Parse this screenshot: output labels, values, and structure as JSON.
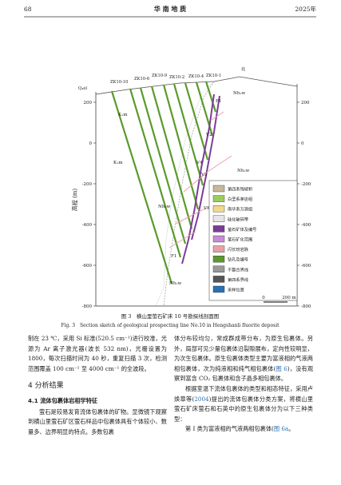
{
  "header": {
    "page": "68",
    "journal": "华 南 地 质",
    "year": "2025年"
  },
  "figure": {
    "y_label": "高程 (m)",
    "yticks": [
      200,
      0,
      -200,
      -400,
      -600,
      -800
    ],
    "top_labels": [
      "Q₄el",
      "ZK10-10",
      "ZK10-6",
      "ZK10-9",
      "ZK10-2",
      "ZK10-4",
      "ZK10-1",
      "北"
    ],
    "unit_labels": [
      "K₁m",
      "K₁m",
      "Nh₁w",
      "Nh₁w",
      "Nh₁w",
      "Nh₁w"
    ],
    "vein_labels": [
      "V1",
      "V2",
      "V3",
      "V4",
      "F1",
      "F1"
    ],
    "legend": [
      "第四系残坡积",
      "白垩系茅店组",
      "南华系万源组",
      "硅化破碎带",
      "萤石矿体及编号",
      "萤石矿化范围",
      "闪长玢岩脉",
      "钻孔及编号",
      "不整合界线",
      "第四系界线",
      "采样位置"
    ],
    "scale": [
      "0",
      "200 m"
    ],
    "caption_cn": "图 3　横山里萤石矿床 10 号勘探线剖面图",
    "caption_en": "Fig. 3　Section sketch of geological prospecting line No.10 in Hengshanli fluorite deposit"
  },
  "body": {
    "left_p1": "制在 23 ℃，采用 Si 标准(520.5 cm⁻¹)进行校准，光源为 Ar 离子激光器(波长 532 nm)，光栅设置为 1800，每次扫描时间为 40 秒，重复扫描 3 次，检测范围覆盖 100 cm⁻¹ 至 4000 cm⁻¹ 的全波段。",
    "heading": "4 分析结果",
    "subheading": "4.1 流体包裹体岩相学特征",
    "left_p2": "萤石是较易发育流体包裹体的矿物。显微镜下观察到横山里萤石矿区萤石样品中包裹体具有个体较小、数量多、边界明显的特点。多数包裹",
    "right_p1a": "体分布较均匀，常成群成带分布，为原生包裹体。另外，局部可见少量包裹体沿裂隙展布，定向性较明显，为次生包裹体。原生包裹体类型主要为富液相的气液两相包裹体，次为纯液相和纯气相包裹体(",
    "right_p1_cite": "图 6",
    "right_p1b": ")，没有观察到富含 CO₂ 包裹体和含子晶多相包裹体。",
    "right_p2a": "根据室温下流体包裹体的类型和相态特征，采用卢焕章等(",
    "right_p2_cite": "2004",
    "right_p2b": ")提出的流体包裹体分类方案，将横山里萤石矿床萤石和石英中的原生包裹体分为以下三种类型：",
    "right_p3a": "第 I 类为富液相的气液两相包裹体(",
    "right_p3_cite": "图 6a",
    "right_p3b": "。"
  }
}
